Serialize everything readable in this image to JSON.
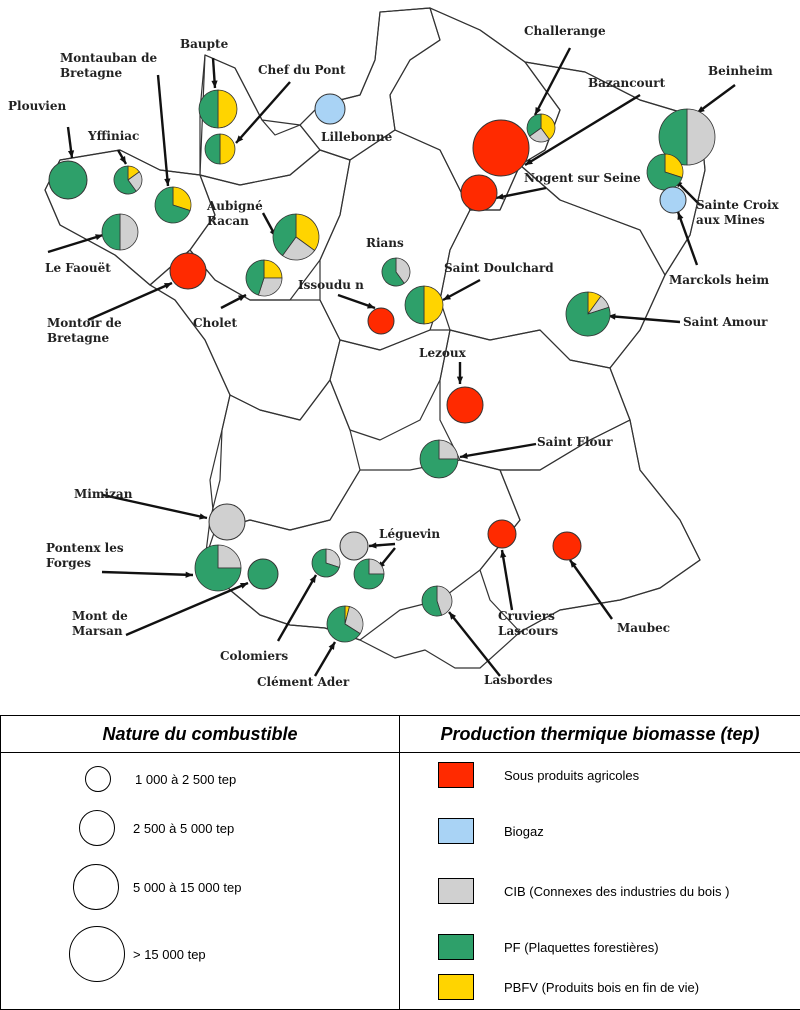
{
  "map": {
    "categories": {
      "agri": {
        "color": "#ff2a00",
        "key": "legend.fuel_types.0.label"
      },
      "biogaz": {
        "color": "#a9d3f5"
      },
      "cib": {
        "color": "#d0d0d0"
      },
      "pf": {
        "color": "#2ea06a"
      },
      "pbfv": {
        "color": "#ffd400"
      }
    },
    "sites": [
      {
        "name": "Plouvien",
        "label": "Plouvien"
      },
      {
        "name": "Yffiniac",
        "label": "Yffiniac"
      },
      {
        "name": "Montauban de Bretagne",
        "label_lines": [
          "Montauban de",
          "Bretagne"
        ]
      },
      {
        "name": "Baupte",
        "label": "Baupte"
      },
      {
        "name": "Chef du Pont",
        "label": "Chef du Pont"
      },
      {
        "name": "Lillebonne",
        "label": "Lillebonne"
      },
      {
        "name": "Challerange",
        "label": "Challerange"
      },
      {
        "name": "Bazancourt",
        "label": "Bazancourt"
      },
      {
        "name": "Beinheim",
        "label": "Beinheim"
      },
      {
        "name": "Nogent sur Seine",
        "label": "Nogent sur Seine"
      },
      {
        "name": "Sainte Croix aux Mines",
        "label_lines": [
          "Sainte Croix",
          "aux Mines"
        ]
      },
      {
        "name": "Marckols heim",
        "label": "Marckols heim"
      },
      {
        "name": "Le Faouët",
        "label": "Le Faouët"
      },
      {
        "name": "Aubigné Racan",
        "label_lines": [
          "Aubigné",
          "Racan"
        ]
      },
      {
        "name": "Rians",
        "label": "Rians"
      },
      {
        "name": "Montoir de Bretagne",
        "label_lines": [
          "Montoir de",
          "Bretagne"
        ]
      },
      {
        "name": "Issoudu n",
        "label": "Issoudu n"
      },
      {
        "name": "Saint Doulchard",
        "label": "Saint Doulchard"
      },
      {
        "name": "Cholet",
        "label": "Cholet"
      },
      {
        "name": "Saint Amour",
        "label": "Saint Amour"
      },
      {
        "name": "Lezoux",
        "label": "Lezoux"
      },
      {
        "name": "Saint Flour",
        "label": "Saint Flour"
      },
      {
        "name": "Mimizan",
        "label": "Mimizan"
      },
      {
        "name": "Pontenx les Forges",
        "label_lines": [
          "Pontenx les",
          "Forges"
        ]
      },
      {
        "name": "Léguevin",
        "label": "Léguevin"
      },
      {
        "name": "Mont de Marsan",
        "label_lines": [
          "Mont de",
          "Marsan"
        ]
      },
      {
        "name": "Colomiers",
        "label": "Colomiers"
      },
      {
        "name": "Clément Ader",
        "label": "Clément Ader"
      },
      {
        "name": "Cruviers Lascours",
        "label_lines": [
          "Cruviers",
          "Lascours"
        ]
      },
      {
        "name": "Maubec",
        "label": "Maubec"
      },
      {
        "name": "Lasbordes",
        "label": "Lasbordes"
      }
    ]
  },
  "legend": {
    "left_title": "Nature du combustible",
    "right_title": "Production thermique biomasse (tep)",
    "sizes": [
      {
        "label": "1 000 à 2 500 tep"
      },
      {
        "label": "2 500 à 5 000 tep"
      },
      {
        "label": "5 000 à 15 000 tep"
      },
      {
        "label": "> 15 000 tep"
      }
    ],
    "fuel_types": [
      {
        "label": "Sous produits agricoles",
        "color": "#ff2a00"
      },
      {
        "label": "Biogaz",
        "color": "#a9d3f5"
      },
      {
        "label": "CIB (Connexes des industries du bois )",
        "color": "#d0d0d0"
      },
      {
        "label": "PF (Plaquettes forestières)",
        "color": "#2ea06a"
      },
      {
        "label": "PBFV (Produits bois en fin de vie)",
        "color": "#ffd400"
      }
    ]
  }
}
